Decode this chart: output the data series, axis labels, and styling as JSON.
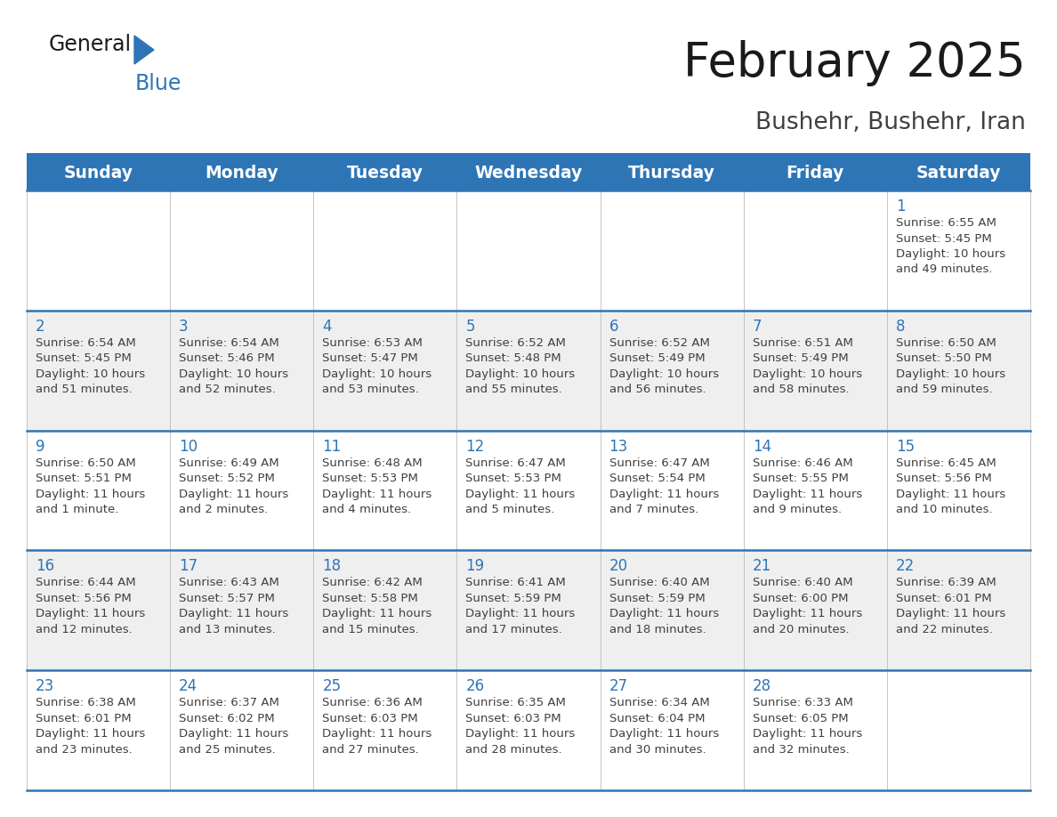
{
  "title": "February 2025",
  "subtitle": "Bushehr, Bushehr, Iran",
  "days_of_week": [
    "Sunday",
    "Monday",
    "Tuesday",
    "Wednesday",
    "Thursday",
    "Friday",
    "Saturday"
  ],
  "header_bg": "#2E75B6",
  "header_text_color": "#FFFFFF",
  "cell_bg_white": "#FFFFFF",
  "cell_bg_gray": "#EFEFEF",
  "separator_color": "#2E75B6",
  "day_number_color": "#2E75B6",
  "info_text_color": "#404040",
  "title_color": "#1A1A1A",
  "subtitle_color": "#404040",
  "logo_general_color": "#1A1A1A",
  "logo_blue_color": "#2E75B6",
  "logo_triangle_color": "#2E75B6",
  "weeks": [
    {
      "days": [
        {
          "date": "",
          "info": ""
        },
        {
          "date": "",
          "info": ""
        },
        {
          "date": "",
          "info": ""
        },
        {
          "date": "",
          "info": ""
        },
        {
          "date": "",
          "info": ""
        },
        {
          "date": "",
          "info": ""
        },
        {
          "date": "1",
          "info": "Sunrise: 6:55 AM\nSunset: 5:45 PM\nDaylight: 10 hours\nand 49 minutes."
        }
      ]
    },
    {
      "days": [
        {
          "date": "2",
          "info": "Sunrise: 6:54 AM\nSunset: 5:45 PM\nDaylight: 10 hours\nand 51 minutes."
        },
        {
          "date": "3",
          "info": "Sunrise: 6:54 AM\nSunset: 5:46 PM\nDaylight: 10 hours\nand 52 minutes."
        },
        {
          "date": "4",
          "info": "Sunrise: 6:53 AM\nSunset: 5:47 PM\nDaylight: 10 hours\nand 53 minutes."
        },
        {
          "date": "5",
          "info": "Sunrise: 6:52 AM\nSunset: 5:48 PM\nDaylight: 10 hours\nand 55 minutes."
        },
        {
          "date": "6",
          "info": "Sunrise: 6:52 AM\nSunset: 5:49 PM\nDaylight: 10 hours\nand 56 minutes."
        },
        {
          "date": "7",
          "info": "Sunrise: 6:51 AM\nSunset: 5:49 PM\nDaylight: 10 hours\nand 58 minutes."
        },
        {
          "date": "8",
          "info": "Sunrise: 6:50 AM\nSunset: 5:50 PM\nDaylight: 10 hours\nand 59 minutes."
        }
      ]
    },
    {
      "days": [
        {
          "date": "9",
          "info": "Sunrise: 6:50 AM\nSunset: 5:51 PM\nDaylight: 11 hours\nand 1 minute."
        },
        {
          "date": "10",
          "info": "Sunrise: 6:49 AM\nSunset: 5:52 PM\nDaylight: 11 hours\nand 2 minutes."
        },
        {
          "date": "11",
          "info": "Sunrise: 6:48 AM\nSunset: 5:53 PM\nDaylight: 11 hours\nand 4 minutes."
        },
        {
          "date": "12",
          "info": "Sunrise: 6:47 AM\nSunset: 5:53 PM\nDaylight: 11 hours\nand 5 minutes."
        },
        {
          "date": "13",
          "info": "Sunrise: 6:47 AM\nSunset: 5:54 PM\nDaylight: 11 hours\nand 7 minutes."
        },
        {
          "date": "14",
          "info": "Sunrise: 6:46 AM\nSunset: 5:55 PM\nDaylight: 11 hours\nand 9 minutes."
        },
        {
          "date": "15",
          "info": "Sunrise: 6:45 AM\nSunset: 5:56 PM\nDaylight: 11 hours\nand 10 minutes."
        }
      ]
    },
    {
      "days": [
        {
          "date": "16",
          "info": "Sunrise: 6:44 AM\nSunset: 5:56 PM\nDaylight: 11 hours\nand 12 minutes."
        },
        {
          "date": "17",
          "info": "Sunrise: 6:43 AM\nSunset: 5:57 PM\nDaylight: 11 hours\nand 13 minutes."
        },
        {
          "date": "18",
          "info": "Sunrise: 6:42 AM\nSunset: 5:58 PM\nDaylight: 11 hours\nand 15 minutes."
        },
        {
          "date": "19",
          "info": "Sunrise: 6:41 AM\nSunset: 5:59 PM\nDaylight: 11 hours\nand 17 minutes."
        },
        {
          "date": "20",
          "info": "Sunrise: 6:40 AM\nSunset: 5:59 PM\nDaylight: 11 hours\nand 18 minutes."
        },
        {
          "date": "21",
          "info": "Sunrise: 6:40 AM\nSunset: 6:00 PM\nDaylight: 11 hours\nand 20 minutes."
        },
        {
          "date": "22",
          "info": "Sunrise: 6:39 AM\nSunset: 6:01 PM\nDaylight: 11 hours\nand 22 minutes."
        }
      ]
    },
    {
      "days": [
        {
          "date": "23",
          "info": "Sunrise: 6:38 AM\nSunset: 6:01 PM\nDaylight: 11 hours\nand 23 minutes."
        },
        {
          "date": "24",
          "info": "Sunrise: 6:37 AM\nSunset: 6:02 PM\nDaylight: 11 hours\nand 25 minutes."
        },
        {
          "date": "25",
          "info": "Sunrise: 6:36 AM\nSunset: 6:03 PM\nDaylight: 11 hours\nand 27 minutes."
        },
        {
          "date": "26",
          "info": "Sunrise: 6:35 AM\nSunset: 6:03 PM\nDaylight: 11 hours\nand 28 minutes."
        },
        {
          "date": "27",
          "info": "Sunrise: 6:34 AM\nSunset: 6:04 PM\nDaylight: 11 hours\nand 30 minutes."
        },
        {
          "date": "28",
          "info": "Sunrise: 6:33 AM\nSunset: 6:05 PM\nDaylight: 11 hours\nand 32 minutes."
        },
        {
          "date": "",
          "info": ""
        }
      ]
    }
  ]
}
